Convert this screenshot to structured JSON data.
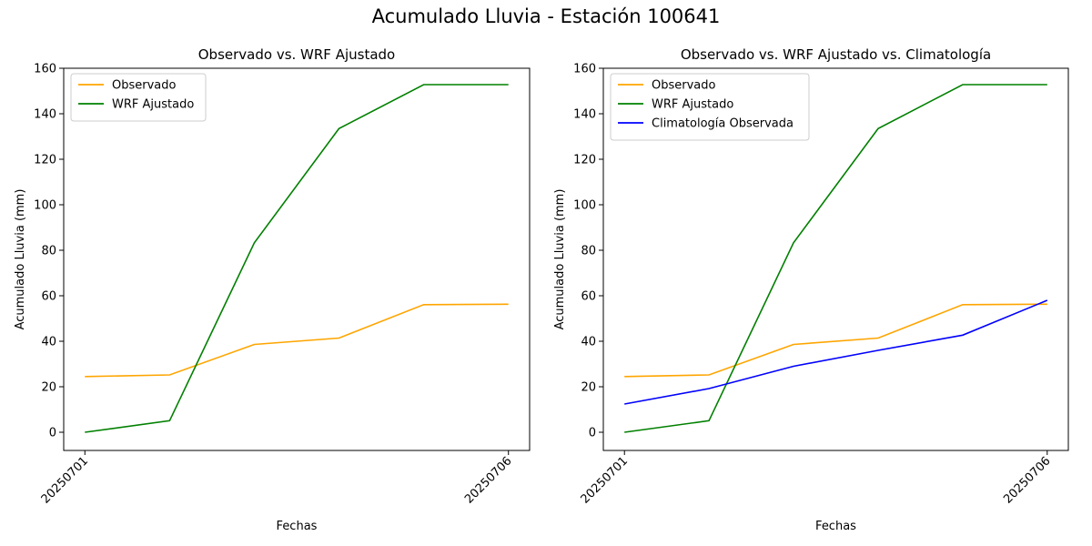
{
  "figure_title": "Acumulado Lluvia - Estación 100641",
  "colors": {
    "observado": "#ffa500",
    "wrf": "#008000",
    "clima": "#0000ff"
  },
  "chart_data": [
    {
      "type": "line",
      "title": "Observado vs. WRF Ajustado",
      "xlabel": "Fechas",
      "ylabel": "Acumulado Lluvia (mm)",
      "x": [
        1,
        2,
        3,
        4,
        5,
        6
      ],
      "xticks": [
        "20250701",
        "20250706"
      ],
      "xtick_positions": [
        1,
        6
      ],
      "ylim": [
        -8,
        160
      ],
      "yticks": [
        0,
        20,
        40,
        60,
        80,
        100,
        120,
        140,
        160
      ],
      "legend": "upper-left",
      "series": [
        {
          "name": "Observado",
          "color": "#ffa500",
          "values": [
            24.5,
            25.2,
            38.6,
            41.4,
            56.1,
            56.3
          ]
        },
        {
          "name": "WRF Ajustado",
          "color": "#008000",
          "values": [
            0.0,
            5.1,
            83.3,
            133.5,
            152.8,
            152.8
          ]
        }
      ]
    },
    {
      "type": "line",
      "title": "Observado vs. WRF Ajustado vs. Climatología",
      "xlabel": "Fechas",
      "ylabel": "Acumulado Lluvia (mm)",
      "x": [
        1,
        2,
        3,
        4,
        5,
        6
      ],
      "xticks": [
        "20250701",
        "20250706"
      ],
      "xtick_positions": [
        1,
        6
      ],
      "ylim": [
        -8,
        160
      ],
      "yticks": [
        0,
        20,
        40,
        60,
        80,
        100,
        120,
        140,
        160
      ],
      "legend": "upper-left",
      "series": [
        {
          "name": "Observado",
          "color": "#ffa500",
          "values": [
            24.5,
            25.2,
            38.6,
            41.4,
            56.1,
            56.3
          ]
        },
        {
          "name": "WRF Ajustado",
          "color": "#008000",
          "values": [
            0.0,
            5.1,
            83.3,
            133.5,
            152.8,
            152.8
          ]
        },
        {
          "name": "Climatología Observada",
          "color": "#0000ff",
          "values": [
            12.4,
            19.2,
            29.0,
            36.0,
            42.7,
            58.0
          ]
        }
      ]
    }
  ]
}
